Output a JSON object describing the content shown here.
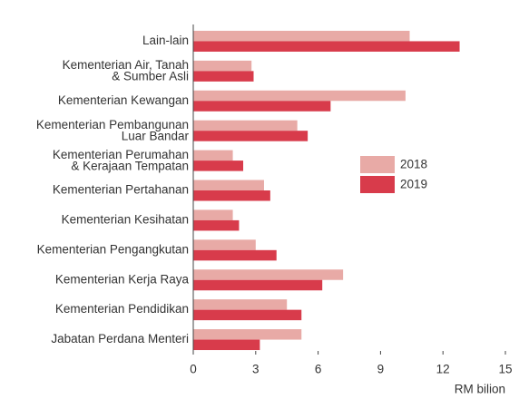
{
  "chart_data": {
    "type": "bar",
    "orientation": "horizontal",
    "categories": [
      "Lain-lain",
      "Kementerian Air, Tanah\n& Sumber Asli",
      "Kementerian Kewangan",
      "Kementerian Pembangunan\nLuar Bandar",
      "Kementerian Perumahan\n& Kerajaan Tempatan",
      "Kementerian Pertahanan",
      "Kementerian Kesihatan",
      "Kementerian Pengangkutan",
      "Kementerian Kerja Raya",
      "Kementerian Pendidikan",
      "Jabatan Perdana Menteri"
    ],
    "series": [
      {
        "name": "2018",
        "color": "#e8aaa6",
        "values": [
          10.4,
          2.8,
          10.2,
          5.0,
          1.9,
          3.4,
          1.9,
          3.0,
          7.2,
          4.5,
          5.2
        ]
      },
      {
        "name": "2019",
        "color": "#d83b4b",
        "values": [
          12.8,
          2.9,
          6.6,
          5.5,
          2.4,
          3.7,
          2.2,
          4.0,
          6.2,
          5.2,
          3.2
        ]
      }
    ],
    "xlim": [
      0,
      15
    ],
    "xticks": [
      0,
      3,
      6,
      9,
      12,
      15
    ],
    "x_label": "RM bilion"
  }
}
